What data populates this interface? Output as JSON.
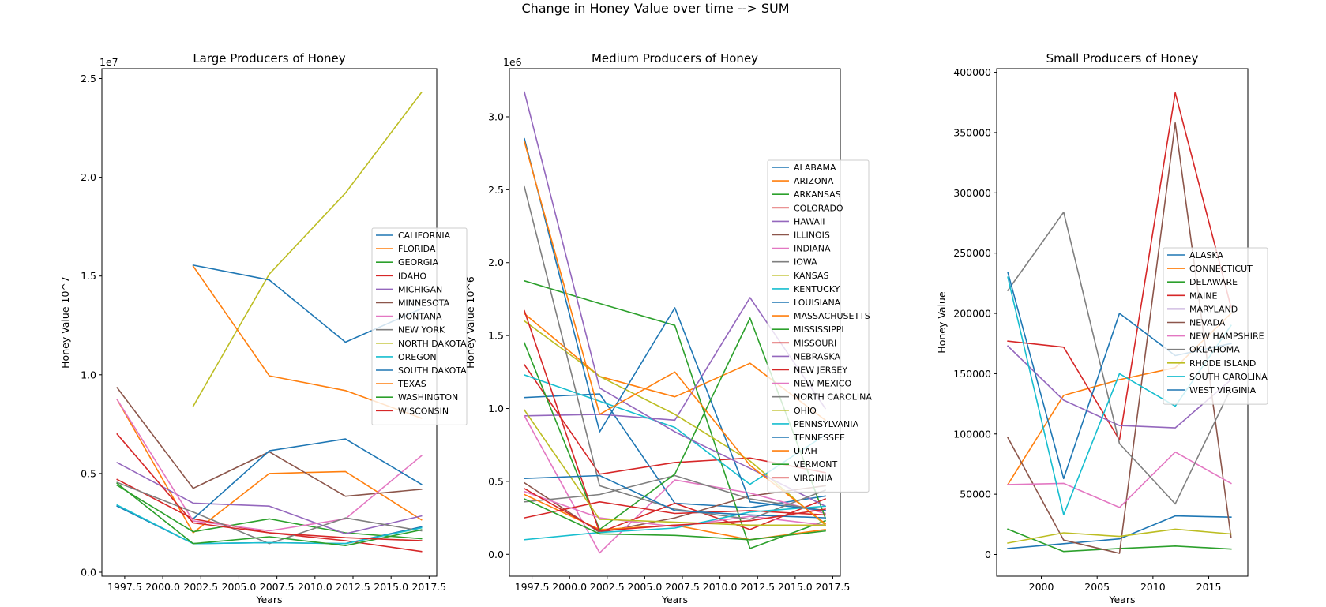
{
  "figure": {
    "suptitle": "Change in Honey Value over time --> SUM"
  },
  "chart_data": [
    {
      "type": "line",
      "title": "Large Producers of Honey",
      "xlabel": "Years",
      "ylabel": "Honey Value 10^7",
      "offset_text": "1e7",
      "xlim": [
        1996,
        2018
      ],
      "ylim": [
        -200000,
        25500000
      ],
      "xticks": [
        1997.5,
        2000,
        2002.5,
        2005,
        2007.5,
        2010,
        2012.5,
        2015,
        2017.5
      ],
      "xtick_labels": [
        "1997.5",
        "2000.0",
        "2002.5",
        "2005.0",
        "2007.5",
        "2010.0",
        "2012.5",
        "2015.0",
        "2017.5"
      ],
      "yticks": [
        0,
        5000000,
        10000000,
        15000000,
        20000000,
        25000000
      ],
      "ytick_labels": [
        "0.0",
        "0.5",
        "1.0",
        "1.5",
        "2.0",
        "2.5"
      ],
      "legend_position": "right",
      "x": [
        1997,
        2002,
        2007,
        2012,
        2017
      ],
      "series": [
        {
          "name": "CALIFORNIA",
          "color": "#1f77b4",
          "values": [
            3350000,
            1450000,
            1500000,
            1450000,
            2300000
          ]
        },
        {
          "name": "FLORIDA",
          "color": "#ff7f0e",
          "values": [
            8750000,
            2000000,
            5000000,
            5100000,
            2650000
          ]
        },
        {
          "name": "GEORGIA",
          "color": "#2ca02c",
          "values": [
            4400000,
            2050000,
            2700000,
            2000000,
            1700000
          ]
        },
        {
          "name": "IDAHO",
          "color": "#d62728",
          "values": [
            4700000,
            2700000,
            2000000,
            1600000,
            1050000
          ]
        },
        {
          "name": "MICHIGAN",
          "color": "#9467bd",
          "values": [
            5550000,
            3500000,
            3350000,
            1950000,
            2850000
          ]
        },
        {
          "name": "MINNESOTA",
          "color": "#8c564b",
          "values": [
            9350000,
            4250000,
            6100000,
            3850000,
            4200000
          ]
        },
        {
          "name": "MONTANA",
          "color": "#e377c2",
          "values": [
            8750000,
            2600000,
            2100000,
            2700000,
            5900000
          ]
        },
        {
          "name": "NEW YORK",
          "color": "#7f7f7f",
          "values": [
            4550000,
            3050000,
            1450000,
            2750000,
            2100000
          ]
        },
        {
          "name": "NORTH DAKOTA",
          "color": "#bcbd22",
          "values": [
            null,
            8400000,
            15100000,
            19200000,
            24300000
          ]
        },
        {
          "name": "OREGON",
          "color": "#17becf",
          "values": [
            3400000,
            1450000,
            1500000,
            1450000,
            2250000
          ]
        },
        {
          "name": "SOUTH DAKOTA",
          "color": "#1f77b4",
          "values": [
            null,
            15550000,
            14800000,
            11650000,
            13350000
          ]
        },
        {
          "name": "TEXAS",
          "color": "#ff7f0e",
          "values": [
            null,
            15500000,
            9950000,
            9200000,
            7800000
          ]
        },
        {
          "name": "WASHINGTON",
          "color": "#2ca02c",
          "values": [
            4500000,
            1450000,
            1800000,
            1350000,
            2150000
          ]
        },
        {
          "name": "WISCONSIN",
          "color": "#d62728",
          "values": [
            7000000,
            2500000,
            2000000,
            1750000,
            1600000
          ]
        },
        {
          "name": "",
          "color": "#1f77b4",
          "values": [
            null,
            2700000,
            6150000,
            6750000,
            4450000
          ]
        }
      ]
    },
    {
      "type": "line",
      "title": "Medium Producers of Honey",
      "xlabel": "Years",
      "ylabel": "Honey Value 10^6",
      "offset_text": "1e6",
      "xlim": [
        1996,
        2018
      ],
      "ylim": [
        -150000,
        3330000
      ],
      "xticks": [
        1997.5,
        2000,
        2002.5,
        2005,
        2007.5,
        2010,
        2012.5,
        2015,
        2017.5
      ],
      "xtick_labels": [
        "1997.5",
        "2000.0",
        "2002.5",
        "2005.0",
        "2007.5",
        "2010.0",
        "2012.5",
        "2015.0",
        "2017.5"
      ],
      "yticks": [
        0,
        500000,
        1000000,
        1500000,
        2000000,
        2500000,
        3000000
      ],
      "ytick_labels": [
        "0.0",
        "0.5",
        "1.0",
        "1.5",
        "2.0",
        "2.5",
        "3.0"
      ],
      "legend_position": "right",
      "x": [
        1997,
        2002,
        2007,
        2012,
        2017
      ],
      "series": [
        {
          "name": "ALABAMA",
          "color": "#1f77b4",
          "values": [
            1075000,
            1100000,
            350000,
            320000,
            400000
          ]
        },
        {
          "name": "ARIZONA",
          "color": "#ff7f0e",
          "values": [
            1650000,
            1220000,
            1080000,
            1310000,
            920000
          ]
        },
        {
          "name": "ARKANSAS",
          "color": "#2ca02c",
          "values": [
            1875000,
            1720000,
            1570000,
            40000,
            230000
          ]
        },
        {
          "name": "COLORADO",
          "color": "#d62728",
          "values": [
            1300000,
            550000,
            630000,
            660000,
            560000
          ]
        },
        {
          "name": "HAWAII",
          "color": "#9467bd",
          "values": [
            950000,
            960000,
            920000,
            1760000,
            1000000
          ]
        },
        {
          "name": "ILLINOIS",
          "color": "#8c564b",
          "values": [
            490000,
            150000,
            250000,
            400000,
            470000
          ]
        },
        {
          "name": "INDIANA",
          "color": "#e377c2",
          "values": [
            950000,
            10000,
            510000,
            420000,
            280000
          ]
        },
        {
          "name": "IOWA",
          "color": "#7f7f7f",
          "values": [
            360000,
            410000,
            540000,
            380000,
            300000
          ]
        },
        {
          "name": "KANSAS",
          "color": "#bcbd22",
          "values": [
            1600000,
            1220000,
            960000,
            640000,
            200000
          ]
        },
        {
          "name": "KENTUCKY",
          "color": "#17becf",
          "values": [
            1230000,
            1050000,
            870000,
            480000,
            820000
          ]
        },
        {
          "name": "LOUISIANA",
          "color": "#1f77b4",
          "values": [
            2850000,
            840000,
            1690000,
            360000,
            300000
          ]
        },
        {
          "name": "MASSACHUSETTS",
          "color": "#ff7f0e",
          "values": [
            410000,
            170000,
            200000,
            100000,
            170000
          ]
        },
        {
          "name": "MISSISSIPPI",
          "color": "#2ca02c",
          "values": [
            1450000,
            170000,
            550000,
            1620000,
            250000
          ]
        },
        {
          "name": "MISSOURI",
          "color": "#d62728",
          "values": [
            1670000,
            150000,
            350000,
            170000,
            380000
          ]
        },
        {
          "name": "NEBRASKA",
          "color": "#9467bd",
          "values": [
            3170000,
            1140000,
            840000,
            590000,
            330000
          ]
        },
        {
          "name": "NEW JERSEY",
          "color": "#d62728",
          "values": [
            250000,
            360000,
            280000,
            300000,
            270000
          ]
        },
        {
          "name": "NEW MEXICO",
          "color": "#e377c2",
          "values": [
            430000,
            250000,
            190000,
            260000,
            200000
          ]
        },
        {
          "name": "NORTH CAROLINA",
          "color": "#7f7f7f",
          "values": [
            2520000,
            470000,
            310000,
            240000,
            440000
          ]
        },
        {
          "name": "OHIO",
          "color": "#bcbd22",
          "values": [
            990000,
            240000,
            220000,
            200000,
            200000
          ]
        },
        {
          "name": "PENNSYLVANIA",
          "color": "#17becf",
          "values": [
            100000,
            150000,
            180000,
            290000,
            330000
          ]
        },
        {
          "name": "TENNESSEE",
          "color": "#1f77b4",
          "values": [
            520000,
            540000,
            300000,
            270000,
            250000
          ]
        },
        {
          "name": "UTAH",
          "color": "#ff7f0e",
          "values": [
            2830000,
            960000,
            1250000,
            610000,
            210000
          ]
        },
        {
          "name": "VERMONT",
          "color": "#2ca02c",
          "values": [
            380000,
            140000,
            130000,
            100000,
            160000
          ]
        },
        {
          "name": "VIRGINIA",
          "color": "#d62728",
          "values": [
            450000,
            160000,
            200000,
            230000,
            310000
          ]
        }
      ]
    },
    {
      "type": "line",
      "title": "Small Producers of Honey",
      "xlabel": "Years",
      "ylabel": "Honey Value",
      "offset_text": "",
      "xlim": [
        1996,
        2018.5
      ],
      "ylim": [
        -18000,
        403000
      ],
      "xticks": [
        2000,
        2005,
        2010,
        2015
      ],
      "xtick_labels": [
        "2000",
        "2005",
        "2010",
        "2015"
      ],
      "yticks": [
        0,
        50000,
        100000,
        150000,
        200000,
        250000,
        300000,
        350000,
        400000
      ],
      "ytick_labels": [
        "0",
        "50000",
        "100000",
        "150000",
        "200000",
        "250000",
        "300000",
        "350000",
        "400000"
      ],
      "legend_position": "right",
      "x": [
        1997,
        2002,
        2007,
        2012,
        2017
      ],
      "series": [
        {
          "name": "ALASKA",
          "color": "#1f77b4",
          "values": [
            5000,
            9000,
            13000,
            32000,
            31000
          ]
        },
        {
          "name": "CONNECTICUT",
          "color": "#ff7f0e",
          "values": [
            58000,
            132000,
            145000,
            155000,
            200000
          ]
        },
        {
          "name": "DELAWARE",
          "color": "#2ca02c",
          "values": [
            21000,
            2500,
            5000,
            7000,
            4500
          ]
        },
        {
          "name": "MAINE",
          "color": "#d62728",
          "values": [
            177000,
            172000,
            95000,
            383000,
            205000
          ]
        },
        {
          "name": "MARYLAND",
          "color": "#9467bd",
          "values": [
            173000,
            128000,
            107000,
            105000,
            145000
          ]
        },
        {
          "name": "NEVADA",
          "color": "#8c564b",
          "values": [
            97000,
            12000,
            1000,
            358000,
            14000
          ]
        },
        {
          "name": "NEW HAMPSHIRE",
          "color": "#e377c2",
          "values": [
            58000,
            59000,
            39000,
            85000,
            59000
          ]
        },
        {
          "name": "OKLAHOMA",
          "color": "#7f7f7f",
          "values": [
            219000,
            284000,
            92000,
            42000,
            138000
          ]
        },
        {
          "name": "RHODE ISLAND",
          "color": "#bcbd22",
          "values": [
            9500,
            18000,
            15000,
            21000,
            17000
          ]
        },
        {
          "name": "SOUTH CAROLINA",
          "color": "#17becf",
          "values": [
            230000,
            33000,
            150000,
            123000,
            190000
          ]
        },
        {
          "name": "WEST VIRGINIA",
          "color": "#1f77b4",
          "values": [
            234000,
            63000,
            200000,
            165000,
            175000
          ]
        }
      ]
    }
  ]
}
